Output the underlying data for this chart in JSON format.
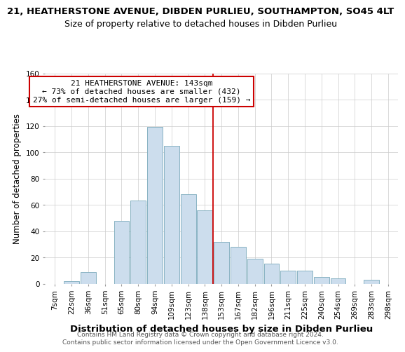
{
  "title_line1": "21, HEATHERSTONE AVENUE, DIBDEN PURLIEU, SOUTHAMPTON, SO45 4LT",
  "title_line2": "Size of property relative to detached houses in Dibden Purlieu",
  "xlabel": "Distribution of detached houses by size in Dibden Purlieu",
  "ylabel": "Number of detached properties",
  "bar_labels": [
    "7sqm",
    "22sqm",
    "36sqm",
    "51sqm",
    "65sqm",
    "80sqm",
    "94sqm",
    "109sqm",
    "123sqm",
    "138sqm",
    "153sqm",
    "167sqm",
    "182sqm",
    "196sqm",
    "211sqm",
    "225sqm",
    "240sqm",
    "254sqm",
    "269sqm",
    "283sqm",
    "298sqm"
  ],
  "bar_values": [
    0,
    2,
    9,
    0,
    48,
    63,
    119,
    105,
    68,
    56,
    32,
    28,
    19,
    15,
    10,
    10,
    5,
    4,
    0,
    3,
    0
  ],
  "bar_color": "#ccdded",
  "bar_edgecolor": "#7aaabb",
  "property_line_index": 9.5,
  "annotation_title": "21 HEATHERSTONE AVENUE: 143sqm",
  "annotation_line1": "← 73% of detached houses are smaller (432)",
  "annotation_line2": "27% of semi-detached houses are larger (159) →",
  "annotation_box_facecolor": "#ffffff",
  "annotation_box_edgecolor": "#cc0000",
  "vline_color": "#cc0000",
  "ylim": [
    0,
    160
  ],
  "yticks": [
    0,
    20,
    40,
    60,
    80,
    100,
    120,
    140,
    160
  ],
  "footer_line1": "Contains HM Land Registry data © Crown copyright and database right 2024.",
  "footer_line2": "Contains public sector information licensed under the Open Government Licence v3.0.",
  "background_color": "#ffffff",
  "grid_color": "#cccccc",
  "title1_fontsize": 9.5,
  "title2_fontsize": 9,
  "ylabel_fontsize": 8.5,
  "xlabel_fontsize": 9.5,
  "tick_fontsize": 7.5,
  "annot_fontsize": 8,
  "footer_fontsize": 6.5
}
